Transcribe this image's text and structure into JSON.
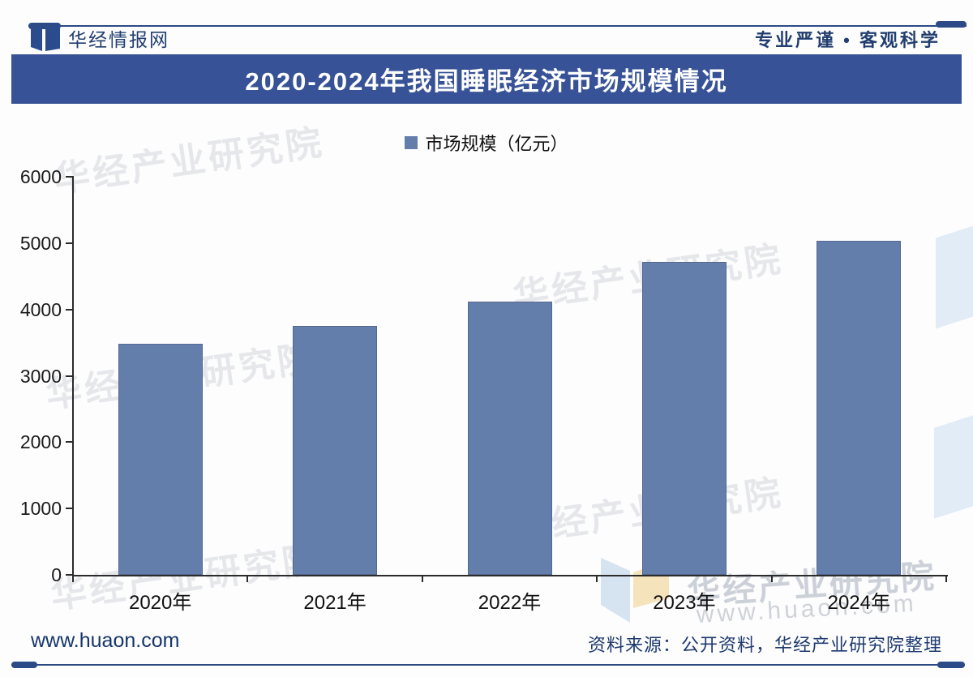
{
  "header": {
    "brand": "华经情报网",
    "slogan": "专业严谨 • 客观科学"
  },
  "title": "2020-2024年我国睡眠经济市场规模情况",
  "legend": {
    "label": "市场规模（亿元）"
  },
  "chart_data": {
    "type": "bar",
    "title": "2020-2024年我国睡眠经济市场规模情况",
    "categories": [
      "2020年",
      "2021年",
      "2022年",
      "2023年",
      "2024年"
    ],
    "values": [
      3480,
      3750,
      4120,
      4720,
      5030
    ],
    "series_name": "市场规模（亿元）",
    "unit": "亿元",
    "xlabel": "",
    "ylabel": "",
    "ylim": [
      0,
      6000
    ],
    "ytick_step": 1000,
    "yticks": [
      0,
      1000,
      2000,
      3000,
      4000,
      5000,
      6000
    ],
    "grid": false,
    "legend_position": "top"
  },
  "colors": {
    "bar_fill": "#647eac",
    "bar_border": "#55678e",
    "title_bar_bg": "#375296",
    "title_text": "#ffffff",
    "brand_navy": "#223e6f",
    "rule_navy": "#2c4a86"
  },
  "watermarks": {
    "diagonal_text": "华经产业研究院",
    "bottom_text": "华经产业研究院",
    "url_text": "www.huaon.com",
    "logo_icon": "huajing-ribbon-logo"
  },
  "footer": {
    "site": "www.huaon.com",
    "source": "资料来源：公开资料，华经产业研究院整理"
  }
}
